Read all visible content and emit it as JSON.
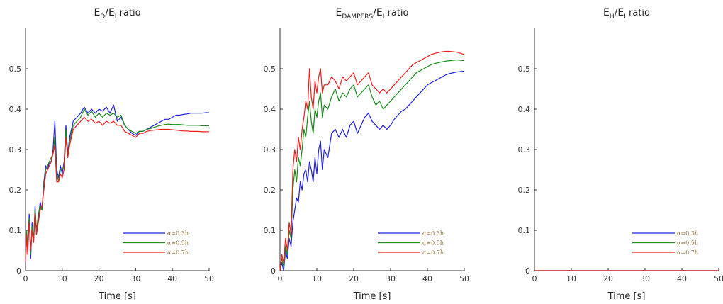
{
  "chart_data": [
    {
      "type": "line",
      "title": {
        "base": "E",
        "sub1": "D",
        "mid": "/E",
        "sub2": "I",
        "rest": " ratio"
      },
      "xlabel": "Time [s]",
      "xlim": [
        0,
        50
      ],
      "ylim": [
        0,
        0.6
      ],
      "xticks": [
        "0",
        "10",
        "20",
        "30",
        "40",
        "50"
      ],
      "yticks": [
        "0",
        "0.1",
        "0.2",
        "0.3",
        "0.4",
        "0.5"
      ],
      "legend_position": "bottom-right",
      "series": [
        {
          "name": "α=0.3h",
          "color": "#1f1fe0",
          "x": [
            0,
            0.3,
            0.6,
            1,
            1.4,
            1.8,
            2.2,
            2.6,
            3,
            3.5,
            4,
            4.5,
            5,
            5.5,
            6,
            6.5,
            7,
            7.5,
            8,
            8.5,
            9,
            9.5,
            10,
            10.5,
            11,
            11.5,
            12,
            13,
            14,
            15,
            16,
            17,
            18,
            19,
            20,
            21,
            22,
            23,
            24,
            25,
            26,
            27,
            28,
            29,
            30,
            31,
            32,
            33,
            34,
            35,
            36,
            37,
            38,
            39,
            40,
            41,
            42,
            43,
            44,
            45,
            46,
            47,
            48,
            49,
            50
          ],
          "y": [
            0.02,
            0.08,
            0.05,
            0.14,
            0.03,
            0.12,
            0.07,
            0.16,
            0.09,
            0.13,
            0.17,
            0.15,
            0.22,
            0.26,
            0.25,
            0.27,
            0.27,
            0.3,
            0.37,
            0.25,
            0.23,
            0.26,
            0.24,
            0.27,
            0.36,
            0.29,
            0.33,
            0.37,
            0.38,
            0.39,
            0.405,
            0.39,
            0.4,
            0.39,
            0.4,
            0.395,
            0.405,
            0.39,
            0.41,
            0.37,
            0.38,
            0.36,
            0.35,
            0.34,
            0.335,
            0.345,
            0.345,
            0.35,
            0.355,
            0.36,
            0.365,
            0.37,
            0.375,
            0.375,
            0.38,
            0.385,
            0.385,
            0.387,
            0.388,
            0.39,
            0.39,
            0.39,
            0.39,
            0.391,
            0.391
          ]
        },
        {
          "name": "α=0.5h",
          "color": "#1a8a1a",
          "x": [
            0,
            0.3,
            0.6,
            1,
            1.4,
            1.8,
            2.2,
            2.6,
            3,
            3.5,
            4,
            4.5,
            5,
            5.5,
            6,
            6.5,
            7,
            7.5,
            8,
            8.5,
            9,
            9.5,
            10,
            10.5,
            11,
            11.5,
            12,
            13,
            14,
            15,
            16,
            17,
            18,
            19,
            20,
            21,
            22,
            23,
            24,
            25,
            26,
            27,
            28,
            29,
            30,
            31,
            32,
            33,
            34,
            35,
            36,
            37,
            38,
            39,
            40,
            41,
            42,
            43,
            44,
            45,
            46,
            47,
            48,
            49,
            50
          ],
          "y": [
            0.03,
            0.1,
            0.06,
            0.13,
            0.04,
            0.11,
            0.08,
            0.15,
            0.1,
            0.14,
            0.16,
            0.15,
            0.21,
            0.25,
            0.26,
            0.27,
            0.28,
            0.29,
            0.33,
            0.24,
            0.22,
            0.25,
            0.25,
            0.26,
            0.35,
            0.28,
            0.32,
            0.36,
            0.37,
            0.38,
            0.4,
            0.385,
            0.395,
            0.38,
            0.39,
            0.38,
            0.39,
            0.385,
            0.39,
            0.38,
            0.385,
            0.36,
            0.35,
            0.345,
            0.34,
            0.345,
            0.345,
            0.35,
            0.352,
            0.355,
            0.358,
            0.36,
            0.362,
            0.363,
            0.362,
            0.362,
            0.362,
            0.361,
            0.36,
            0.36,
            0.36,
            0.36,
            0.359,
            0.359,
            0.359
          ]
        },
        {
          "name": "α=0.7h",
          "color": "#ee1c1c",
          "x": [
            0,
            0.3,
            0.6,
            1,
            1.4,
            1.8,
            2.2,
            2.6,
            3,
            3.5,
            4,
            4.5,
            5,
            5.5,
            6,
            6.5,
            7,
            7.5,
            8,
            8.5,
            9,
            9.5,
            10,
            10.5,
            11,
            11.5,
            12,
            13,
            14,
            15,
            16,
            17,
            18,
            19,
            20,
            21,
            22,
            23,
            24,
            25,
            26,
            27,
            28,
            29,
            30,
            31,
            32,
            33,
            34,
            35,
            36,
            37,
            38,
            39,
            40,
            41,
            42,
            43,
            44,
            45,
            46,
            47,
            48,
            49,
            50
          ],
          "y": [
            0.02,
            0.09,
            0.04,
            0.12,
            0.05,
            0.1,
            0.07,
            0.14,
            0.09,
            0.12,
            0.15,
            0.16,
            0.2,
            0.24,
            0.25,
            0.26,
            0.27,
            0.29,
            0.31,
            0.22,
            0.22,
            0.24,
            0.23,
            0.25,
            0.33,
            0.28,
            0.31,
            0.35,
            0.36,
            0.37,
            0.38,
            0.37,
            0.375,
            0.365,
            0.37,
            0.36,
            0.37,
            0.365,
            0.37,
            0.36,
            0.36,
            0.345,
            0.34,
            0.335,
            0.33,
            0.34,
            0.34,
            0.345,
            0.347,
            0.348,
            0.349,
            0.35,
            0.35,
            0.35,
            0.349,
            0.348,
            0.347,
            0.346,
            0.346,
            0.345,
            0.345,
            0.345,
            0.344,
            0.344,
            0.344
          ]
        }
      ]
    },
    {
      "type": "line",
      "title": {
        "base": "E",
        "sub1": "DAMPERS",
        "mid": "/E",
        "sub2": "I",
        "rest": " ratio"
      },
      "xlabel": "Time [s]",
      "xlim": [
        0,
        50
      ],
      "ylim": [
        0,
        0.6
      ],
      "xticks": [
        "0",
        "10",
        "20",
        "30",
        "40",
        "50"
      ],
      "yticks": [
        "0",
        "0.1",
        "0.2",
        "0.3",
        "0.4",
        "0.5"
      ],
      "legend_position": "bottom-right",
      "series": [
        {
          "name": "α=0.3h",
          "color": "#1f1fe0",
          "x": [
            0,
            0.5,
            1,
            1.5,
            2,
            2.5,
            3,
            3.5,
            4,
            4.5,
            5,
            5.5,
            6,
            6.5,
            7,
            7.5,
            8,
            8.5,
            9,
            9.5,
            10,
            10.5,
            11,
            11.5,
            12,
            13,
            14,
            15,
            16,
            17,
            18,
            19,
            20,
            21,
            22,
            23,
            24,
            25,
            26,
            27,
            28,
            29,
            30,
            31,
            32,
            33,
            34,
            35,
            36,
            37,
            38,
            39,
            40,
            41,
            42,
            43,
            44,
            45,
            46,
            47,
            48,
            49,
            50
          ],
          "y": [
            0.0,
            0.02,
            0.0,
            0.05,
            0.03,
            0.08,
            0.06,
            0.12,
            0.15,
            0.18,
            0.17,
            0.22,
            0.2,
            0.24,
            0.25,
            0.22,
            0.27,
            0.25,
            0.22,
            0.28,
            0.24,
            0.3,
            0.32,
            0.25,
            0.3,
            0.28,
            0.34,
            0.35,
            0.33,
            0.35,
            0.33,
            0.36,
            0.37,
            0.34,
            0.36,
            0.38,
            0.39,
            0.37,
            0.36,
            0.35,
            0.36,
            0.35,
            0.36,
            0.375,
            0.385,
            0.395,
            0.4,
            0.41,
            0.42,
            0.43,
            0.44,
            0.45,
            0.46,
            0.465,
            0.47,
            0.475,
            0.48,
            0.485,
            0.488,
            0.49,
            0.492,
            0.493,
            0.494
          ]
        },
        {
          "name": "α=0.5h",
          "color": "#1a8a1a",
          "x": [
            0,
            0.5,
            1,
            1.5,
            2,
            2.5,
            3,
            3.5,
            4,
            4.5,
            5,
            5.5,
            6,
            6.5,
            7,
            7.5,
            8,
            8.5,
            9,
            9.5,
            10,
            10.5,
            11,
            11.5,
            12,
            13,
            14,
            15,
            16,
            17,
            18,
            19,
            20,
            21,
            22,
            23,
            24,
            25,
            26,
            27,
            28,
            29,
            30,
            31,
            32,
            33,
            34,
            35,
            36,
            37,
            38,
            39,
            40,
            41,
            42,
            43,
            44,
            45,
            46,
            47,
            48,
            49,
            50
          ],
          "y": [
            0.0,
            0.03,
            0.01,
            0.06,
            0.04,
            0.1,
            0.08,
            0.2,
            0.25,
            0.22,
            0.28,
            0.26,
            0.3,
            0.35,
            0.33,
            0.38,
            0.42,
            0.37,
            0.34,
            0.4,
            0.38,
            0.42,
            0.44,
            0.38,
            0.41,
            0.4,
            0.43,
            0.45,
            0.42,
            0.44,
            0.43,
            0.45,
            0.46,
            0.43,
            0.44,
            0.45,
            0.46,
            0.43,
            0.41,
            0.42,
            0.4,
            0.41,
            0.42,
            0.43,
            0.44,
            0.45,
            0.46,
            0.47,
            0.48,
            0.49,
            0.495,
            0.5,
            0.505,
            0.51,
            0.513,
            0.515,
            0.517,
            0.519,
            0.52,
            0.521,
            0.522,
            0.521,
            0.52
          ]
        },
        {
          "name": "α=0.7h",
          "color": "#ee1c1c",
          "x": [
            0,
            0.5,
            1,
            1.5,
            2,
            2.5,
            3,
            3.5,
            4,
            4.5,
            5,
            5.5,
            6,
            6.5,
            7,
            7.5,
            8,
            8.5,
            9,
            9.5,
            10,
            10.5,
            11,
            11.5,
            12,
            13,
            14,
            15,
            16,
            17,
            18,
            19,
            20,
            21,
            22,
            23,
            24,
            25,
            26,
            27,
            28,
            29,
            30,
            31,
            32,
            33,
            34,
            35,
            36,
            37,
            38,
            39,
            40,
            41,
            42,
            43,
            44,
            45,
            46,
            47,
            48,
            49,
            50
          ],
          "y": [
            0.0,
            0.04,
            0.02,
            0.08,
            0.05,
            0.12,
            0.09,
            0.25,
            0.3,
            0.27,
            0.33,
            0.3,
            0.35,
            0.38,
            0.42,
            0.4,
            0.5,
            0.43,
            0.4,
            0.47,
            0.44,
            0.48,
            0.5,
            0.44,
            0.46,
            0.46,
            0.48,
            0.47,
            0.45,
            0.48,
            0.47,
            0.48,
            0.49,
            0.46,
            0.47,
            0.48,
            0.49,
            0.46,
            0.45,
            0.44,
            0.45,
            0.44,
            0.45,
            0.46,
            0.47,
            0.48,
            0.49,
            0.5,
            0.51,
            0.515,
            0.52,
            0.525,
            0.53,
            0.535,
            0.538,
            0.54,
            0.542,
            0.543,
            0.543,
            0.542,
            0.541,
            0.538,
            0.535
          ]
        }
      ]
    },
    {
      "type": "line",
      "title": {
        "base": "E",
        "sub1": "H",
        "mid": "/E",
        "sub2": "I",
        "rest": " ratio"
      },
      "xlabel": "Time [s]",
      "xlim": [
        0,
        50
      ],
      "ylim": [
        0,
        0.6
      ],
      "xticks": [
        "0",
        "10",
        "20",
        "30",
        "40",
        "50"
      ],
      "yticks": [
        "0",
        "0.1",
        "0.2",
        "0.3",
        "0.4",
        "0.5"
      ],
      "legend_position": "bottom-right",
      "series": [
        {
          "name": "α=0.3h",
          "color": "#1f1fe0",
          "x": [
            0,
            50
          ],
          "y": [
            0,
            0
          ]
        },
        {
          "name": "α=0.5h",
          "color": "#1a8a1a",
          "x": [
            0,
            50
          ],
          "y": [
            0,
            0
          ]
        },
        {
          "name": "α=0.7h",
          "color": "#ee1c1c",
          "x": [
            0,
            50
          ],
          "y": [
            0,
            0
          ]
        }
      ]
    }
  ]
}
